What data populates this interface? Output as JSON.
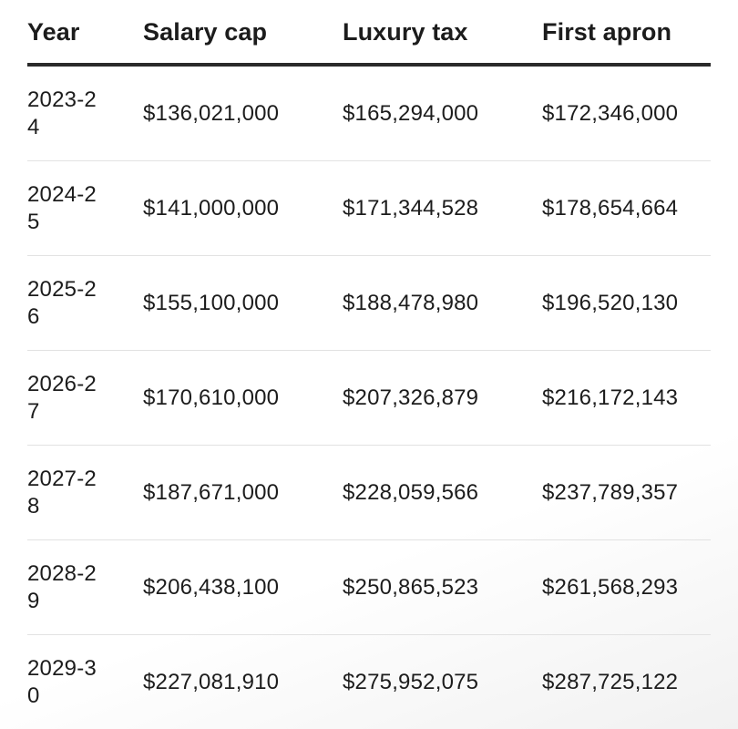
{
  "headers": [
    "Year",
    "Salary cap",
    "Luxury tax",
    "First apron"
  ],
  "rows": [
    {
      "year": "2023-24",
      "salary_cap": "$136,021,000",
      "luxury_tax": "$165,294,000",
      "first_apron": "$172,346,000"
    },
    {
      "year": "2024-25",
      "salary_cap": "$141,000,000",
      "luxury_tax": "$171,344,528",
      "first_apron": "$178,654,664"
    },
    {
      "year": "2025-26",
      "salary_cap": "$155,100,000",
      "luxury_tax": "$188,478,980",
      "first_apron": "$196,520,130"
    },
    {
      "year": "2026-27",
      "salary_cap": "$170,610,000",
      "luxury_tax": "$207,326,879",
      "first_apron": "$216,172,143"
    },
    {
      "year": "2027-28",
      "salary_cap": "$187,671,000",
      "luxury_tax": "$228,059,566",
      "first_apron": "$237,789,357"
    },
    {
      "year": "2028-29",
      "salary_cap": "$206,438,100",
      "luxury_tax": "$250,865,523",
      "first_apron": "$261,568,293"
    },
    {
      "year": "2029-30",
      "salary_cap": "$227,081,910",
      "luxury_tax": "$275,952,075",
      "first_apron": "$287,725,122"
    }
  ]
}
